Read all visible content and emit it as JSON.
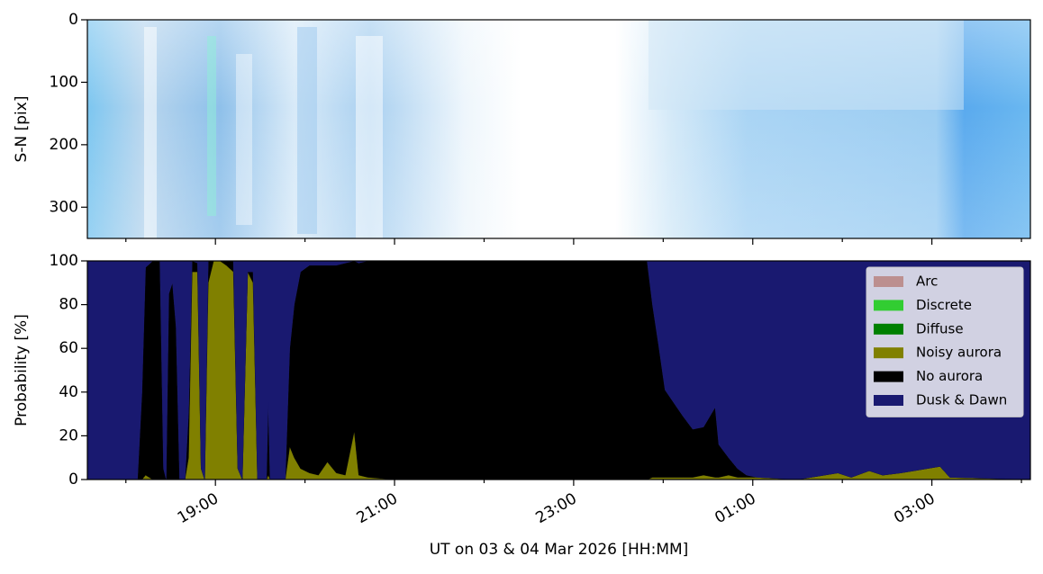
{
  "chart_data": [
    {
      "type": "image",
      "ylabel": "S-N [pix]",
      "ylim": [
        350,
        0
      ],
      "yticks": [
        0,
        100,
        200,
        300
      ]
    },
    {
      "type": "stacked-area",
      "xlabel": "UT on 03 & 04 Mar 2026 [HH:MM]",
      "ylabel": "Probability [%]",
      "x": [
        17.57,
        18.13,
        18.18,
        18.22,
        18.3,
        18.38,
        18.42,
        18.45,
        18.48,
        18.52,
        18.56,
        18.6,
        18.66,
        18.7,
        18.74,
        18.8,
        18.84,
        18.88,
        18.92,
        18.98,
        19.05,
        19.12,
        19.2,
        19.25,
        19.3,
        19.36,
        19.42,
        19.47,
        19.57,
        19.59,
        19.61,
        19.78,
        19.83,
        19.88,
        19.95,
        20.05,
        20.15,
        20.25,
        20.35,
        20.45,
        20.55,
        20.6,
        20.7,
        21.0,
        22.0,
        23.0,
        23.82,
        23.88,
        23.95,
        24.02,
        24.12,
        24.22,
        24.33,
        24.45,
        24.58,
        24.62,
        24.73,
        24.83,
        24.93,
        25.05,
        25.5,
        25.95,
        26.1,
        26.3,
        26.45,
        26.65,
        26.8,
        27.09,
        27.2,
        28.1
      ],
      "xlim": [
        17.57,
        28.1
      ],
      "xticks": [
        {
          "value": 19,
          "label": "19:00"
        },
        {
          "value": 21,
          "label": "21:00"
        },
        {
          "value": 23,
          "label": "23:00"
        },
        {
          "value": 25,
          "label": "01:00"
        },
        {
          "value": 27,
          "label": "03:00"
        }
      ],
      "xminor_ticks": [
        18,
        20,
        22,
        24,
        26,
        28
      ],
      "ylim": [
        0,
        100
      ],
      "yticks": [
        0,
        20,
        40,
        60,
        80,
        100
      ],
      "legend": "upper right",
      "series": [
        {
          "name": "Arc",
          "color": "#bc8f8f",
          "values": [
            0,
            0,
            0,
            0,
            0,
            0,
            0,
            0,
            0,
            0,
            0,
            0,
            0,
            0,
            0,
            0,
            0,
            0,
            0,
            0,
            0,
            0,
            0,
            0,
            0,
            0,
            0,
            0,
            0,
            0,
            0,
            0,
            0,
            0,
            0,
            0,
            0,
            0,
            0,
            0,
            0,
            0,
            0,
            0,
            0,
            0,
            0,
            0,
            0,
            0,
            0,
            0,
            0,
            0,
            0,
            0,
            0,
            0,
            0,
            0,
            0,
            0,
            0,
            0,
            0,
            0,
            0,
            0,
            0,
            0
          ]
        },
        {
          "name": "Discrete",
          "color": "#32cd32",
          "values": [
            0,
            0,
            0,
            0,
            0,
            0,
            0,
            0,
            0,
            0,
            0,
            0,
            0,
            0,
            0,
            0,
            0,
            0,
            0,
            0,
            0,
            0,
            0,
            0,
            0,
            0,
            0,
            0,
            0,
            0,
            0,
            0,
            0,
            0,
            0,
            0,
            0,
            0,
            0,
            0,
            0,
            0,
            0,
            0,
            0,
            0,
            0,
            0,
            0,
            0,
            0,
            0,
            0,
            0,
            0,
            0,
            0,
            0,
            0,
            0,
            0,
            0,
            0,
            0,
            0,
            0,
            0,
            0,
            0,
            0
          ]
        },
        {
          "name": "Diffuse",
          "color": "#008000",
          "values": [
            0,
            0,
            0,
            0,
            0,
            0,
            0,
            0,
            0,
            0,
            0,
            0,
            0,
            0,
            0,
            0,
            0,
            0,
            0,
            0,
            0,
            0,
            0,
            0,
            0,
            0,
            0,
            0,
            0,
            0,
            0,
            0,
            0,
            0,
            0,
            0,
            0,
            0,
            0,
            0,
            0,
            0,
            0,
            0,
            0,
            0,
            0,
            0,
            0,
            0,
            0,
            0,
            0,
            0,
            0,
            0,
            0,
            0,
            0,
            0,
            0,
            0,
            0,
            0,
            0,
            0,
            0,
            0,
            0,
            0
          ]
        },
        {
          "name": "Noisy aurora",
          "color": "#808000",
          "values": [
            0,
            0,
            0,
            2,
            0,
            0,
            0,
            0,
            0,
            0,
            0,
            0,
            0,
            10,
            95,
            95,
            5,
            0,
            90,
            100,
            100,
            98,
            95,
            5,
            0,
            95,
            90,
            0,
            0,
            2,
            0,
            0,
            15,
            10,
            5,
            3,
            2,
            8,
            3,
            2,
            22,
            2,
            1,
            0,
            0,
            0,
            0,
            1,
            1,
            1,
            1,
            1,
            1,
            2,
            1,
            1,
            2,
            1,
            1,
            1,
            0,
            3,
            1,
            4,
            2,
            3,
            4,
            6,
            1,
            0
          ]
        },
        {
          "name": "No aurora",
          "color": "#000000",
          "values": [
            0,
            0,
            40,
            95,
            100,
            100,
            5,
            0,
            85,
            90,
            70,
            0,
            0,
            20,
            5,
            4,
            0,
            0,
            10,
            0,
            0,
            2,
            5,
            0,
            0,
            0,
            5,
            0,
            0,
            33,
            0,
            0,
            45,
            70,
            90,
            95,
            96,
            90,
            95,
            97,
            78,
            97,
            99,
            100,
            100,
            100,
            100,
            79,
            60,
            40,
            34,
            28,
            22,
            22,
            32,
            15,
            8,
            4,
            1,
            0,
            0,
            0,
            0,
            0,
            0,
            0,
            0,
            0,
            0,
            0
          ]
        },
        {
          "name": "Dusk & Dawn",
          "color": "#191970",
          "values": [
            100,
            100,
            60,
            3,
            0,
            0,
            95,
            100,
            15,
            10,
            30,
            100,
            100,
            70,
            0,
            1,
            95,
            100,
            0,
            0,
            0,
            0,
            0,
            95,
            100,
            5,
            5,
            100,
            100,
            65,
            100,
            100,
            40,
            20,
            5,
            2,
            2,
            2,
            2,
            1,
            0,
            1,
            0,
            0,
            0,
            0,
            0,
            20,
            39,
            59,
            65,
            71,
            77,
            76,
            67,
            84,
            90,
            95,
            98,
            99,
            100,
            97,
            99,
            96,
            98,
            97,
            96,
            94,
            99,
            100
          ]
        }
      ]
    }
  ]
}
